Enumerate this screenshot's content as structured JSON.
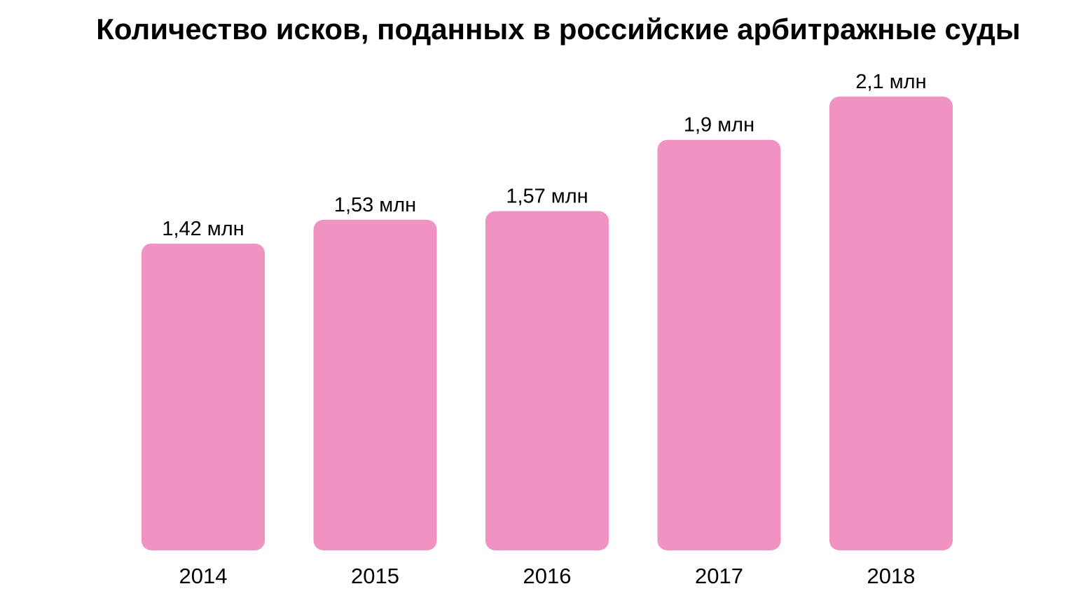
{
  "chart_data": {
    "type": "bar",
    "title": "Количество исков, поданных в российские арбитражные суды",
    "categories": [
      "2014",
      "2015",
      "2016",
      "2017",
      "2018"
    ],
    "values": [
      1.42,
      1.53,
      1.57,
      1.9,
      2.1
    ],
    "value_labels": [
      "1,42 млн",
      "1,53 млн",
      "1,57 млн",
      "1,9 млн",
      "2,1 млн"
    ],
    "xlabel": "",
    "ylabel": "",
    "ylim": [
      0,
      2.1
    ],
    "grid": false,
    "legend": "none",
    "bar_color": "#f093c2"
  }
}
